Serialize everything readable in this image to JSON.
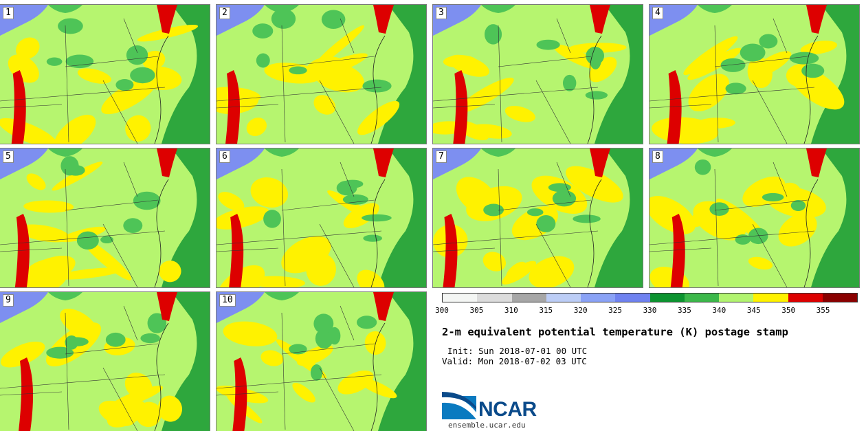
{
  "figure": {
    "title": "2-m equivalent potential temperature (K) postage stamp",
    "init_text": "Init: Sun 2018-07-01 00 UTC",
    "valid_text": "Valid: Mon 2018-07-02 03 UTC",
    "logo_text": "NCAR",
    "url_text": "ensemble.ucar.edu"
  },
  "members": [
    {
      "label": "1"
    },
    {
      "label": "2"
    },
    {
      "label": "3"
    },
    {
      "label": "4"
    },
    {
      "label": "5"
    },
    {
      "label": "6"
    },
    {
      "label": "7"
    },
    {
      "label": "8"
    },
    {
      "label": "9"
    },
    {
      "label": "10"
    }
  ],
  "colorbar": {
    "ticks": [
      "300",
      "305",
      "310",
      "315",
      "320",
      "325",
      "330",
      "335",
      "340",
      "345",
      "350",
      "355"
    ],
    "colors": [
      "#f4f6f4",
      "#dcdcdc",
      "#a6a6a6",
      "#bccdf6",
      "#8aa2f6",
      "#6f82f0",
      "#0c9430",
      "#3cb84a",
      "#b2f470",
      "#fff200",
      "#dd0000",
      "#8a0000"
    ]
  },
  "map_colors": {
    "dark_green": "#2ea73d",
    "mid_green": "#4ec457",
    "light_green": "#b6f56f",
    "yellow": "#fff200",
    "red": "#dd0000",
    "blue": "#7d8ff0"
  }
}
